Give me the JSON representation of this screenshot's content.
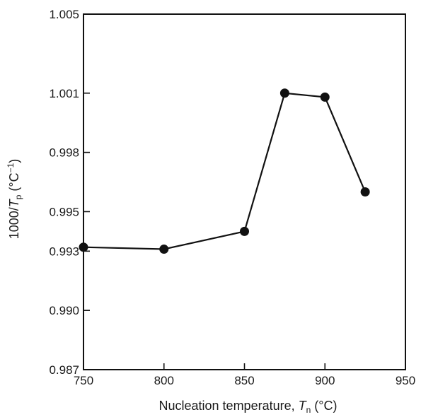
{
  "chart_data": {
    "type": "line",
    "x": [
      750,
      800,
      850,
      875,
      900,
      925
    ],
    "series": [
      {
        "values": [
          0.9932,
          0.9931,
          0.994,
          1.001,
          1.0008,
          0.996
        ]
      }
    ],
    "xlim": [
      750,
      950
    ],
    "ylim": [
      0.987,
      1.005
    ],
    "x_ticks": [
      750,
      800,
      850,
      900,
      950
    ],
    "y_ticks": [
      0.987,
      0.99,
      0.993,
      0.995,
      0.998,
      1.001,
      1.005
    ],
    "x_tick_labels": [
      "750",
      "800",
      "850",
      "900",
      "950"
    ],
    "y_tick_labels": [
      "0.987",
      "0.990",
      "0.993",
      "0.995",
      "0.998",
      "1.001",
      "1.005"
    ],
    "xlabel": {
      "text": "Nucleation temperature, ",
      "var": "T",
      "sub": "n",
      "unit": " (°C)"
    },
    "ylabel": {
      "text": "1000/",
      "var": "T",
      "sub": "p",
      "unit_open": " (°C",
      "sup": "−1",
      "unit_close": ")"
    },
    "grid": false,
    "marker": "filled-circle",
    "colors": {
      "line": "#111111",
      "marker": "#111111",
      "axis": "#111111",
      "background": "#ffffff"
    }
  }
}
